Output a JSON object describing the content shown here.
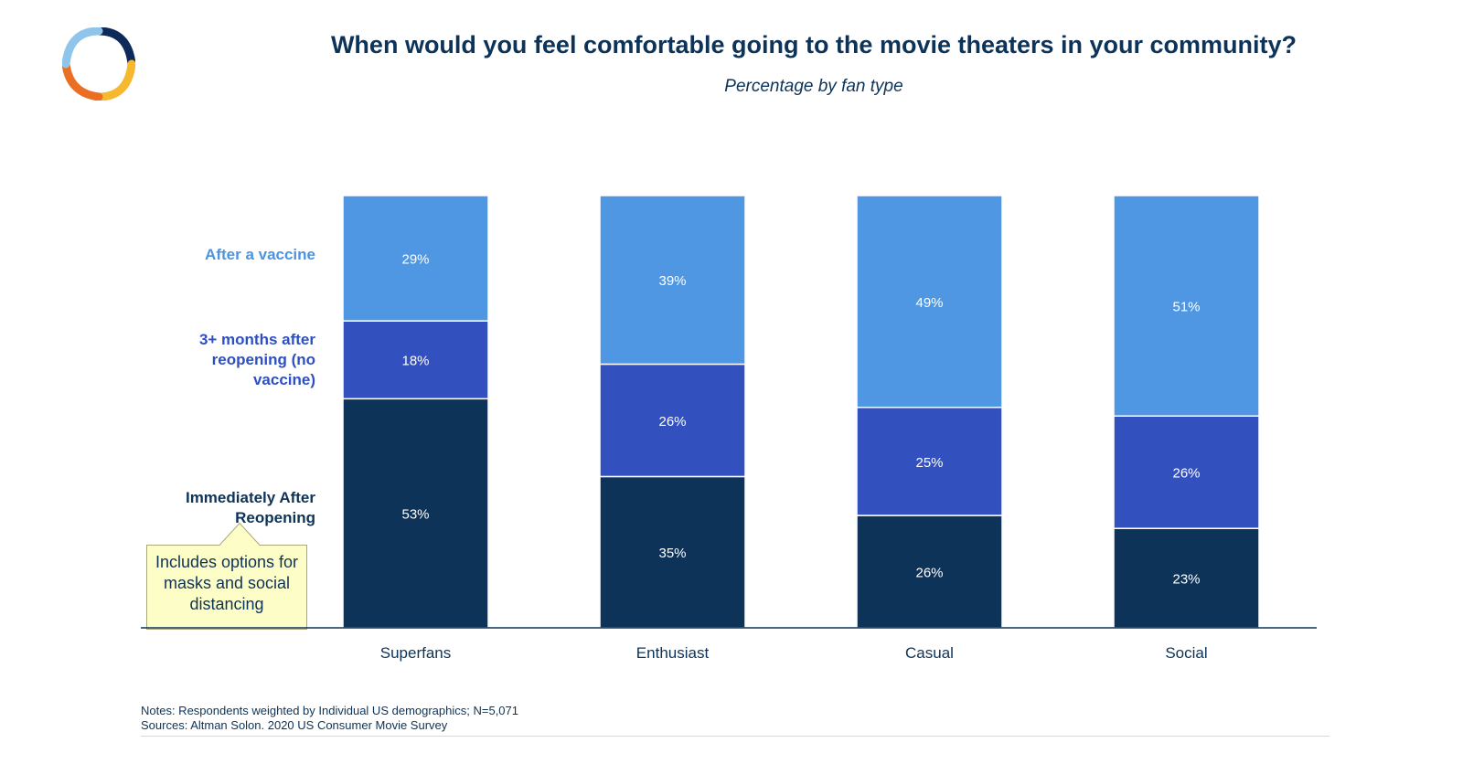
{
  "title": "When would you feel comfortable going to the movie theaters in your community?",
  "subtitle": "Percentage by fan type",
  "legend": {
    "after_vaccine": "After a vaccine",
    "months_after": "3+ months after reopening (no vaccine)",
    "immediately": "Immediately After Reopening"
  },
  "callout": "Includes options for masks and social distancing",
  "notes": {
    "line1": "Notes: Respondents weighted by Individual US demographics; N=5,071",
    "line2": "Sources: Altman Solon. 2020 US Consumer Movie Survey"
  },
  "colors": {
    "after_vaccine": "#4f97e3",
    "months_after": "#3350bf",
    "immediately": "#0e3358",
    "axis": "#0e3358",
    "callout_fill": "#fdfdc7",
    "callout_border": "#a9a97a"
  },
  "chart_data": {
    "type": "bar",
    "stacked": true,
    "categories": [
      "Superfans",
      "Enthusiast",
      "Casual",
      "Social"
    ],
    "series": [
      {
        "name": "Immediately After Reopening",
        "values": [
          53,
          35,
          26,
          23
        ],
        "labels": [
          "53%",
          "35%",
          "26%",
          "23%"
        ]
      },
      {
        "name": "3+ months after reopening (no vaccine)",
        "values": [
          18,
          26,
          25,
          26
        ],
        "labels": [
          "18%",
          "26%",
          "25%",
          "26%"
        ]
      },
      {
        "name": "After a vaccine",
        "values": [
          29,
          39,
          49,
          51
        ],
        "labels": [
          "29%",
          "39%",
          "49%",
          "51%"
        ]
      }
    ],
    "xlabel": "",
    "ylabel": "",
    "ylim": [
      0,
      100
    ],
    "grid": false,
    "legend_placement": "left"
  }
}
